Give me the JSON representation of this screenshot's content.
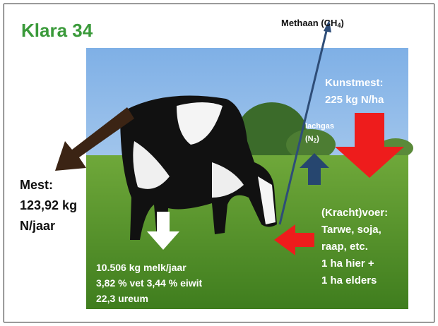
{
  "title": "Klara 34",
  "methane": {
    "prefix": "Methaan (CH",
    "sub": "4",
    "suffix": ")"
  },
  "fertilizer": {
    "lines": [
      "Kunstmest:",
      "225 kg N/ha"
    ]
  },
  "nitrous": {
    "line1": "lachgas",
    "prefix": "(N",
    "sub": "2",
    "suffix": ")"
  },
  "manure": {
    "lines": [
      "Mest:",
      "123,92 kg",
      "N/jaar"
    ]
  },
  "feed": {
    "lines": [
      "(Kracht)voer:",
      "Tarwe, soja,",
      "raap, etc.",
      "1 ha hier +",
      "1 ha elders"
    ]
  },
  "milk": {
    "lines": [
      "10.506 kg melk/jaar",
      "3,82 % vet  3,44 % eiwit",
      "22,3 ureum"
    ]
  }
}
